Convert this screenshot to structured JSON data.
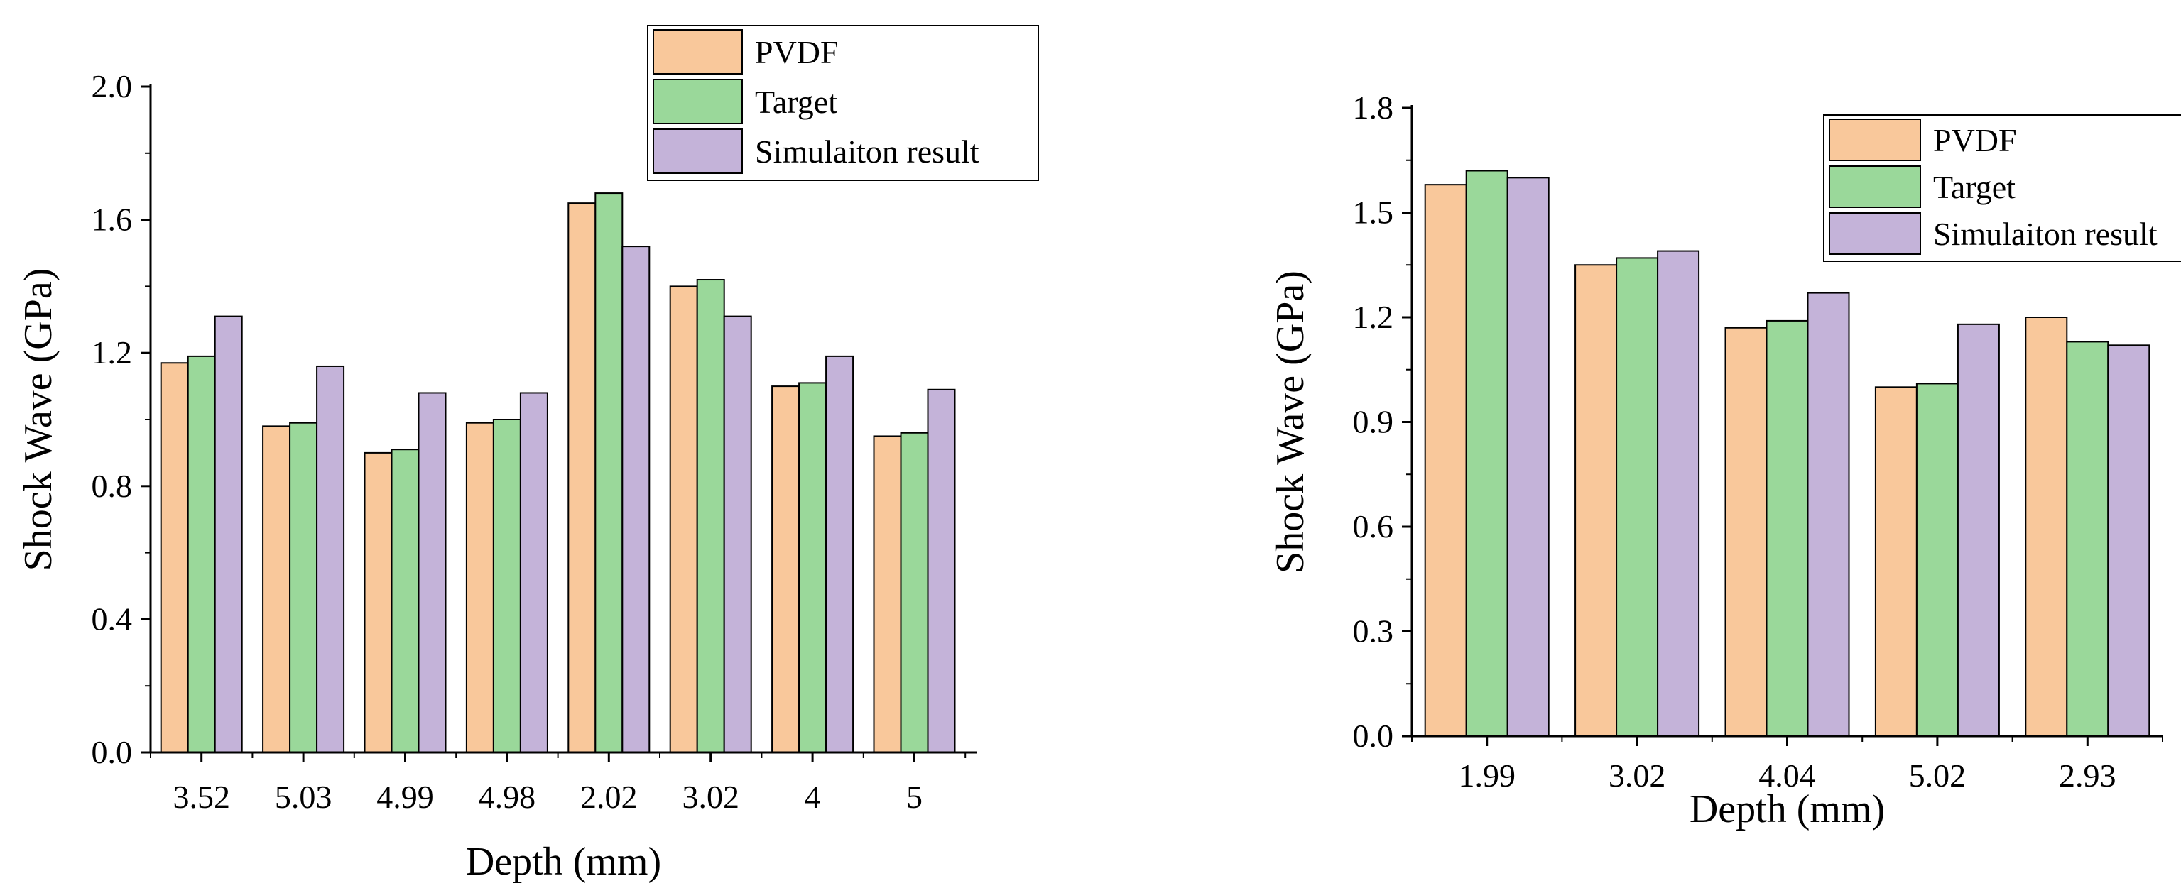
{
  "colors": {
    "PVDF": "#F9C89B",
    "Target": "#9AD89A",
    "Simulaiton result": "#C4B3D9",
    "stroke": "#000000"
  },
  "chart_data": [
    {
      "type": "bar",
      "xlabel": "Depth (mm)",
      "ylabel": "Shock Wave (GPa)",
      "categories": [
        "3.52",
        "5.03",
        "4.99",
        "4.98",
        "2.02",
        "3.02",
        "4",
        "5"
      ],
      "ylim": [
        0,
        2.0
      ],
      "yticks": [
        "0.0",
        "0.4",
        "0.8",
        "1.2",
        "1.6",
        "2.0"
      ],
      "legend_position": "top-right",
      "grid": false,
      "series": [
        {
          "name": "PVDF",
          "values": [
            1.17,
            0.98,
            0.9,
            0.99,
            1.65,
            1.4,
            1.1,
            0.95
          ]
        },
        {
          "name": "Target",
          "values": [
            1.19,
            0.99,
            0.91,
            1.0,
            1.68,
            1.42,
            1.11,
            0.96
          ]
        },
        {
          "name": "Simulaiton result",
          "values": [
            1.31,
            1.16,
            1.08,
            1.08,
            1.52,
            1.31,
            1.19,
            1.09
          ]
        }
      ]
    },
    {
      "type": "bar",
      "xlabel": "Depth (mm)",
      "ylabel": "Shock Wave (GPa)",
      "categories": [
        "1.99",
        "3.02",
        "4.04",
        "5.02",
        "2.93"
      ],
      "ylim": [
        0,
        1.8
      ],
      "yticks": [
        "0.0",
        "0.3",
        "0.6",
        "0.9",
        "1.2",
        "1.5",
        "1.8"
      ],
      "legend_position": "top-right",
      "grid": false,
      "series": [
        {
          "name": "PVDF",
          "values": [
            1.58,
            1.35,
            1.17,
            1.0,
            1.2
          ]
        },
        {
          "name": "Target",
          "values": [
            1.62,
            1.37,
            1.19,
            1.01,
            1.13
          ]
        },
        {
          "name": "Simulaiton result",
          "values": [
            1.6,
            1.39,
            1.27,
            1.18,
            1.12
          ]
        }
      ]
    }
  ]
}
